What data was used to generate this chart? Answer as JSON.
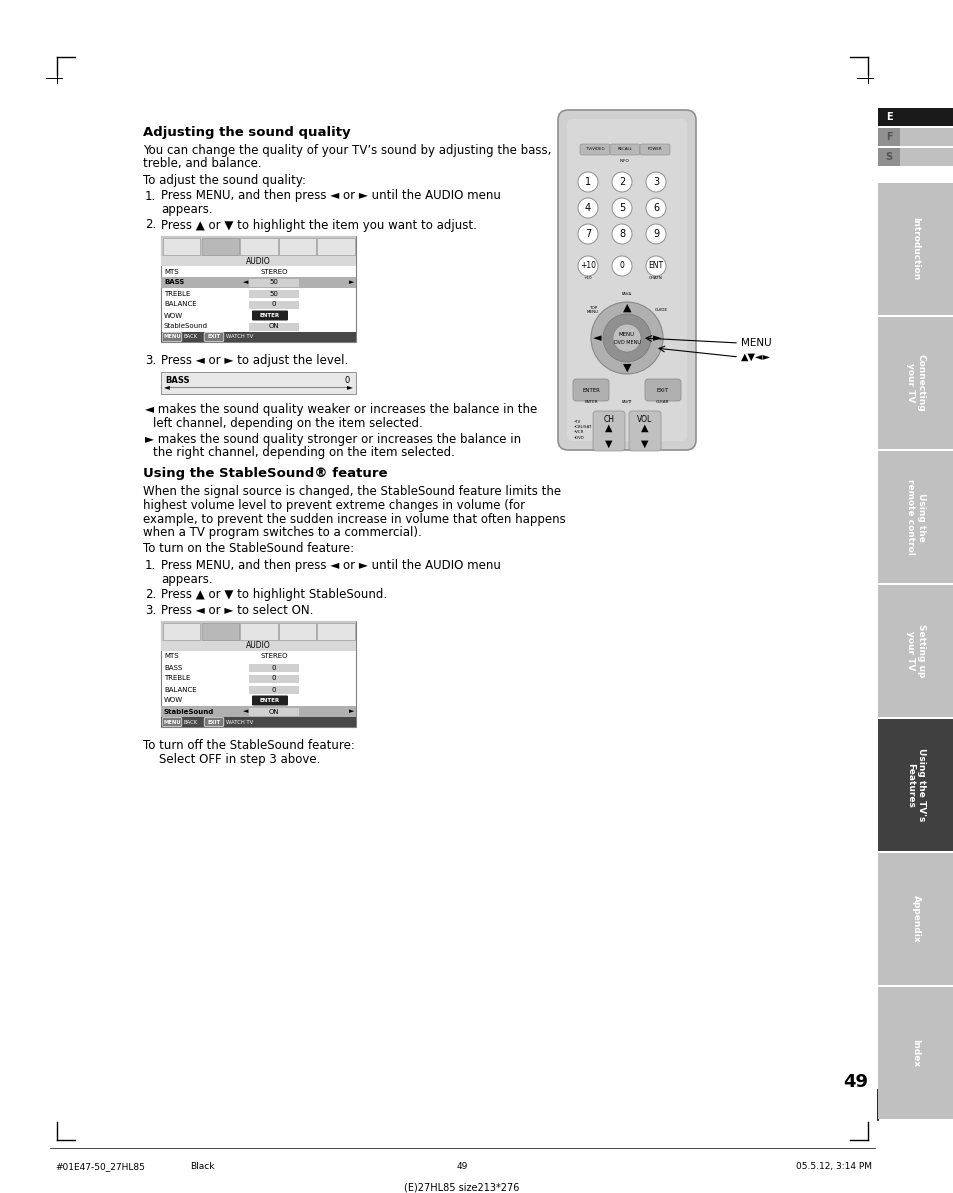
{
  "page_bg": "#ffffff",
  "tab_labels": [
    "Introduction",
    "Connecting\nyour TV",
    "Using the\nremote control",
    "Setting up\nyour TV",
    "Using the TV's\nFeatures",
    "Appendix",
    "Index"
  ],
  "tab_active_index": 4,
  "tab_colors": [
    "#c0c0c0",
    "#c0c0c0",
    "#c0c0c0",
    "#c0c0c0",
    "#404040",
    "#c0c0c0",
    "#c0c0c0"
  ],
  "efs_labels": [
    "E",
    "F",
    "S"
  ],
  "page_number": "49",
  "bottom_text_left": "#01E47-50_27HL85",
  "bottom_text_center": "49",
  "bottom_text_right": "05.5.12, 3:14 PM",
  "bottom_text_black": "Black",
  "bottom_caption": "(E)27HL85 size213*276",
  "title1": "Adjusting the sound quality",
  "body1a": "You can change the quality of your TV’s sound by adjusting the bass,",
  "body1b": "treble, and balance.",
  "body1c": "To adjust the sound quality:",
  "step1_1a": "Press MENU, and then press ◄ or ► until the AUDIO menu",
  "step1_1b": "appears.",
  "step1_2": "Press ▲ or ▼ to highlight the item you want to adjust.",
  "step1_3": "Press ◄ or ► to adjust the level.",
  "bullet1a": "◄ makes the sound quality weaker or increases the balance in the",
  "bullet1b": "left channel, depending on the item selected.",
  "bullet2a": "► makes the sound quality stronger or increases the balance in",
  "bullet2b": "the right channel, depending on the item selected.",
  "title2": "Using the StableSound® feature",
  "body2a": "When the signal source is changed, the StableSound feature limits the",
  "body2b": "highest volume level to prevent extreme changes in volume (for",
  "body2c": "example, to prevent the sudden increase in volume that often happens",
  "body2d": "when a TV program switches to a commercial).",
  "body2e": "To turn on the StableSound feature:",
  "step2_1a": "Press MENU, and then press ◄ or ► until the AUDIO menu",
  "step2_1b": "appears.",
  "step2_2": "Press ▲ or ▼ to highlight StableSound.",
  "step2_3": "Press ◄ or ► to select ON.",
  "body2f": "To turn off the StableSound feature:",
  "body2g": "    Select OFF in step 3 above."
}
